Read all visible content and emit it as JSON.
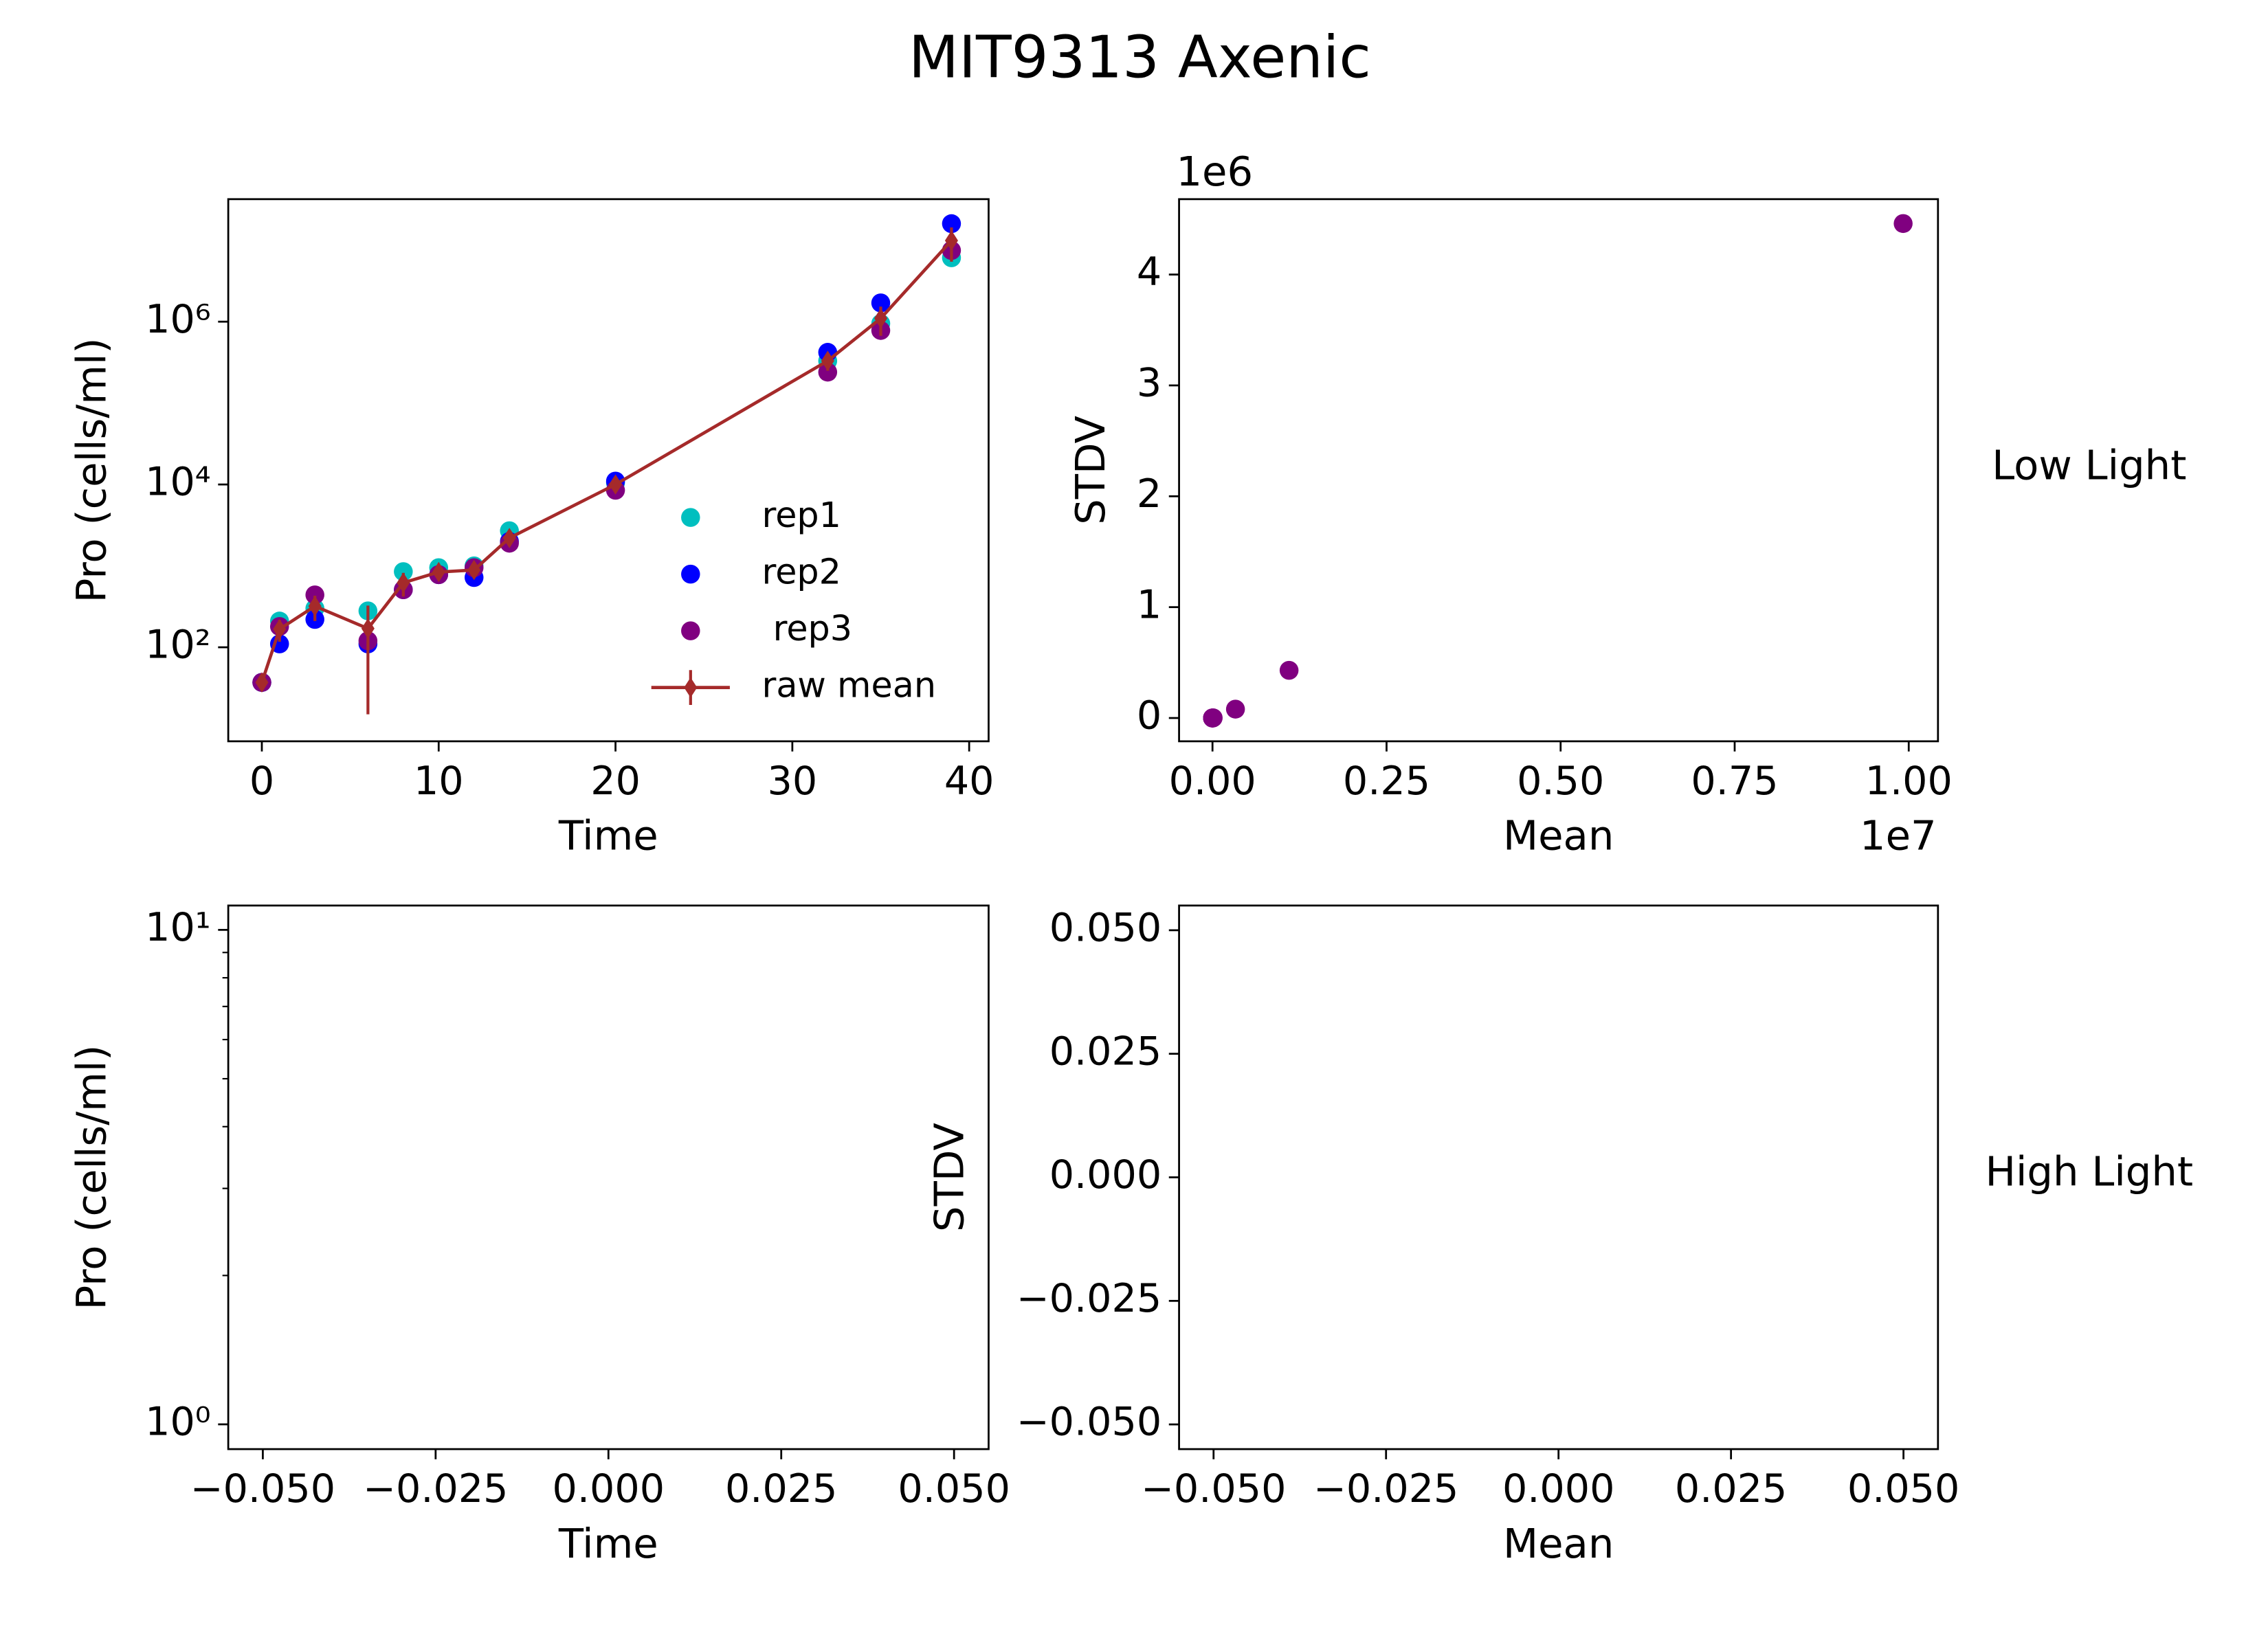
{
  "title": "MIT9313 Axenic",
  "row_labels": [
    "Low Light",
    "High Light"
  ],
  "chart_data": [
    {
      "type": "line",
      "xlabel": "Time",
      "ylabel": "Pro (cells/ml)",
      "yscale": "log",
      "x": [
        0,
        1,
        3,
        6,
        8,
        10,
        12,
        14,
        20,
        32,
        35,
        39
      ],
      "xlim": [
        -1.9,
        41.1
      ],
      "xticks": [
        0,
        10,
        20,
        30,
        40
      ],
      "ylim": [
        7,
        32000000
      ],
      "yticks": [
        {
          "value": 100,
          "label": "10²"
        },
        {
          "value": 10000,
          "label": "10⁴"
        },
        {
          "value": 1000000,
          "label": "10⁶"
        }
      ],
      "legend": "lower right",
      "series": [
        {
          "name": "rep1",
          "style": "scatter",
          "color": "#00bfbf",
          "values": [
            37,
            210,
            300,
            280,
            850,
            950,
            1000,
            2700,
            10500,
            330000,
            950000,
            6100000
          ]
        },
        {
          "name": "rep2",
          "style": "scatter",
          "color": "#0000ff",
          "values": [
            37,
            110,
            220,
            110,
            510,
            780,
            720,
            2000,
            11000,
            420000,
            1700000,
            16000000
          ]
        },
        {
          "name": " rep3",
          "style": "scatter",
          "color": "#800080",
          "values": [
            37,
            180,
            440,
            120,
            510,
            780,
            950,
            1900,
            8500,
            240000,
            780000,
            7500000
          ]
        },
        {
          "name": "raw mean",
          "style": "errorbar",
          "color": "#a52a2a",
          "values": [
            37,
            167,
            320,
            170,
            620,
            840,
            890,
            2200,
            10000,
            330000,
            1100000,
            9920000
          ],
          "errors": [
            1,
            50,
            110,
            155,
            200,
            100,
            150,
            400,
            1300,
            80000,
            430000,
            4460000
          ]
        }
      ]
    },
    {
      "type": "scatter",
      "xlabel": "Mean",
      "ylabel": "STDV",
      "x_offset_label": "1e7",
      "y_offset_label": "1e6",
      "color": "#800080",
      "x": [
        37,
        167,
        320,
        170,
        620,
        840,
        890,
        2200,
        10000,
        330000,
        1100000,
        9920000
      ],
      "values": [
        1,
        50,
        110,
        155,
        200,
        100,
        150,
        400,
        1300,
        80000,
        430000,
        4460000
      ],
      "xlim": [
        -480000,
        10420000
      ],
      "xticks": [
        {
          "value": 0,
          "label": "0.00"
        },
        {
          "value": 2500000,
          "label": "0.25"
        },
        {
          "value": 5000000,
          "label": "0.50"
        },
        {
          "value": 7500000,
          "label": "0.75"
        },
        {
          "value": 10000000,
          "label": "1.00"
        }
      ],
      "ylim": [
        -210000,
        4680000
      ],
      "yticks": [
        {
          "value": 0,
          "label": "0"
        },
        {
          "value": 1000000,
          "label": "1"
        },
        {
          "value": 2000000,
          "label": "2"
        },
        {
          "value": 3000000,
          "label": "3"
        },
        {
          "value": 4000000,
          "label": "4"
        }
      ]
    },
    {
      "type": "line",
      "xlabel": "Time",
      "ylabel": "Pro (cells/ml)",
      "yscale": "log",
      "xlim": [
        -0.055,
        0.055
      ],
      "xticks": [
        {
          "value": -0.05,
          "label": "−0.050"
        },
        {
          "value": -0.025,
          "label": "−0.025"
        },
        {
          "value": 0,
          "label": "0.000"
        },
        {
          "value": 0.025,
          "label": "0.025"
        },
        {
          "value": 0.05,
          "label": "0.050"
        }
      ],
      "ylim": [
        0.891,
        11.2
      ],
      "yticks": [
        {
          "value": 1,
          "label": "10⁰"
        },
        {
          "value": 10,
          "label": "10¹"
        }
      ],
      "yminorticks": [
        2,
        3,
        4,
        5,
        6,
        7,
        8,
        9
      ]
    },
    {
      "type": "scatter",
      "xlabel": "Mean",
      "ylabel": "STDV",
      "xlim": [
        -0.055,
        0.055
      ],
      "xticks": [
        {
          "value": -0.05,
          "label": "−0.050"
        },
        {
          "value": -0.025,
          "label": "−0.025"
        },
        {
          "value": 0,
          "label": "0.000"
        },
        {
          "value": 0.025,
          "label": "0.025"
        },
        {
          "value": 0.05,
          "label": "0.050"
        }
      ],
      "ylim": [
        -0.055,
        0.055
      ],
      "yticks": [
        {
          "value": -0.05,
          "label": "−0.050"
        },
        {
          "value": -0.025,
          "label": "−0.025"
        },
        {
          "value": 0,
          "label": "0.000"
        },
        {
          "value": 0.025,
          "label": "0.025"
        },
        {
          "value": 0.05,
          "label": "0.050"
        }
      ]
    }
  ]
}
